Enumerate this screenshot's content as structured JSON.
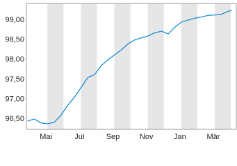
{
  "chart_data": {
    "type": "line",
    "x": [
      -1.1,
      -0.7,
      -0.3,
      0.1,
      0.5,
      0.9,
      1.3,
      1.7,
      2.1,
      2.5,
      2.9,
      3.3,
      3.7,
      4.1,
      4.5,
      4.9,
      5.3,
      5.7,
      6.1,
      6.5,
      6.9,
      7.3,
      7.7,
      8.1,
      8.5,
      8.9,
      9.3,
      9.7,
      10.1,
      10.5,
      10.9,
      11.1
    ],
    "series": [
      {
        "color": "#1a8fd6",
        "values": [
          96.45,
          96.5,
          96.4,
          96.38,
          96.42,
          96.6,
          96.85,
          97.05,
          97.3,
          97.55,
          97.62,
          97.85,
          98.0,
          98.12,
          98.25,
          98.4,
          98.5,
          98.55,
          98.6,
          98.68,
          98.72,
          98.65,
          98.82,
          98.95,
          99.0,
          99.05,
          99.08,
          99.12,
          99.13,
          99.15,
          99.22,
          99.25
        ]
      }
    ],
    "xlim": [
      -1.17,
      11.37
    ],
    "xticks": [
      {
        "value": 0,
        "label": "Mai"
      },
      {
        "value": 2,
        "label": "Jul"
      },
      {
        "value": 4,
        "label": "Sep"
      },
      {
        "value": 6,
        "label": "Nov"
      },
      {
        "value": 8,
        "label": "Jan"
      },
      {
        "value": 10,
        "label": "Mär"
      }
    ],
    "ylim": [
      96.24,
      99.42
    ],
    "yticks": [
      {
        "value": 96.5,
        "label": "96,50"
      },
      {
        "value": 97,
        "label": "97,00"
      },
      {
        "value": 97.5,
        "label": "97,50"
      },
      {
        "value": 98,
        "label": "98,00"
      },
      {
        "value": 98.5,
        "label": "98,50"
      },
      {
        "value": 99,
        "label": "99,00"
      }
    ],
    "grid": true,
    "band_color": "#e6e6e6"
  }
}
